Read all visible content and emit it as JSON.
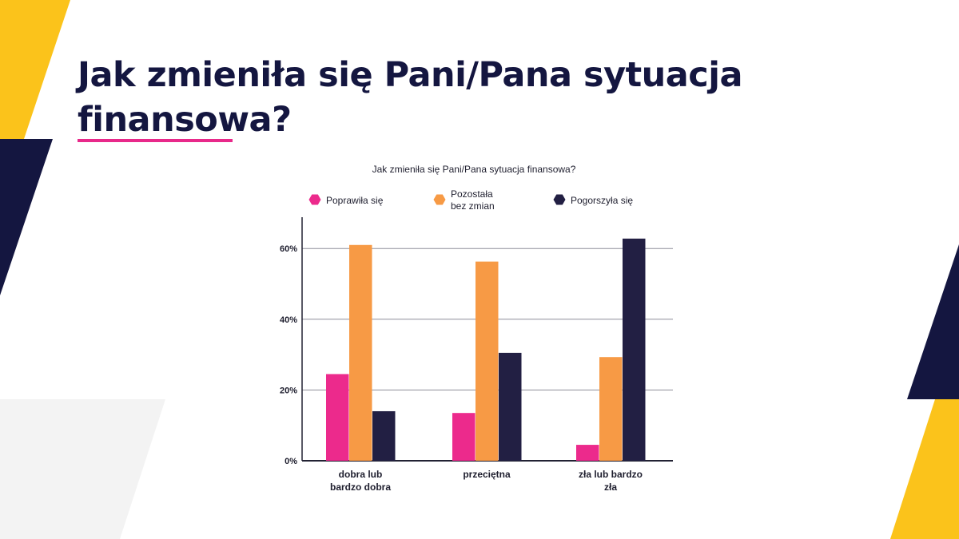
{
  "page": {
    "title": "Jak zmieniła się Pani/Pana sytuacja finansowa?"
  },
  "colors": {
    "navy": "#141640",
    "yellow": "#fbc31b",
    "pink_accent": "#e8298a",
    "light_gray": "#f3f3f3"
  },
  "chart_data": {
    "type": "bar",
    "title": "Jak zmieniła się Pani/Pana sytuacja finansowa?",
    "categories": [
      [
        "dobra lub",
        "bardzo dobra"
      ],
      [
        "przeciętna"
      ],
      [
        "zła lub bardzo",
        "zła"
      ]
    ],
    "series": [
      {
        "name": "Poprawiła się",
        "color": "#ec2a8c",
        "values": [
          24.5,
          13.5,
          4.5
        ]
      },
      {
        "name": [
          "Pozostała",
          "bez zmian"
        ],
        "color": "#f79a45",
        "values": [
          61,
          56.3,
          29.3
        ]
      },
      {
        "name": "Pogorszyła się",
        "color": "#221f43",
        "values": [
          14,
          30.5,
          62.8
        ]
      }
    ],
    "yticks": [
      {
        "value": 0,
        "label": "0%"
      },
      {
        "value": 20,
        "label": "20%"
      },
      {
        "value": 40,
        "label": "40%"
      },
      {
        "value": 60,
        "label": "60%"
      }
    ],
    "ylim": [
      0,
      68
    ],
    "grid": true,
    "legend_position": "top"
  }
}
